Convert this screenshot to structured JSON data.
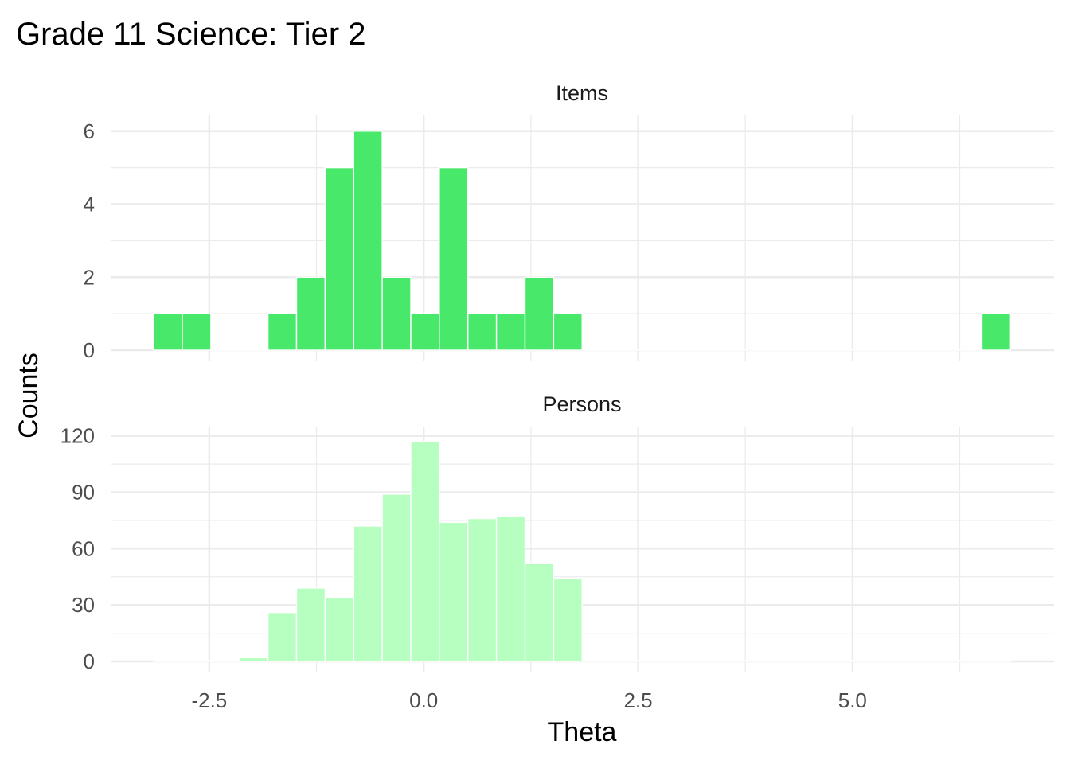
{
  "chart_data": {
    "type": "bar",
    "title": "Grade 11 Science: Tier 2",
    "xlabel": "Theta",
    "ylabel": "Counts",
    "x_ticks": [
      "-2.5",
      "0.0",
      "2.5",
      "5.0"
    ],
    "x_tick_values": [
      -2.5,
      0.0,
      2.5,
      5.0
    ],
    "xlim": [
      -3.65,
      7.35
    ],
    "bin_width": 0.333,
    "bin_centers": [
      -2.981,
      -2.648,
      -2.315,
      -1.982,
      -1.649,
      -1.316,
      -0.983,
      -0.65,
      -0.317,
      0.016,
      0.349,
      0.682,
      1.015,
      1.348,
      1.681,
      2.014,
      2.347,
      2.68,
      3.013,
      3.346,
      3.679,
      4.012,
      4.345,
      4.678,
      5.011,
      5.344,
      5.677,
      6.01,
      6.343,
      6.676
    ],
    "grid": true,
    "legend": "none",
    "colors": {
      "items": "#48e96a",
      "persons": "#b6ffc0",
      "grid": "#ebebeb"
    },
    "panels": [
      {
        "name": "Items",
        "ylim": [
          0,
          6.3
        ],
        "y_ticks": [
          "0",
          "2",
          "4",
          "6"
        ],
        "y_tick_values": [
          0,
          2,
          4,
          6
        ],
        "values": [
          1,
          1,
          0,
          0,
          1,
          2,
          5,
          6,
          2,
          1,
          5,
          1,
          1,
          2,
          1,
          0,
          0,
          0,
          0,
          0,
          0,
          0,
          0,
          0,
          0,
          0,
          0,
          0,
          0,
          1
        ]
      },
      {
        "name": "Persons",
        "ylim": [
          0,
          122
        ],
        "y_ticks": [
          "0",
          "30",
          "60",
          "90",
          "120"
        ],
        "y_tick_values": [
          0,
          30,
          60,
          90,
          120
        ],
        "values": [
          0,
          0,
          0,
          2,
          26,
          39,
          34,
          72,
          89,
          117,
          74,
          76,
          77,
          52,
          44,
          0,
          0,
          0,
          0,
          0,
          0,
          0,
          0,
          0,
          0,
          0,
          0,
          0,
          0,
          0
        ]
      }
    ]
  }
}
